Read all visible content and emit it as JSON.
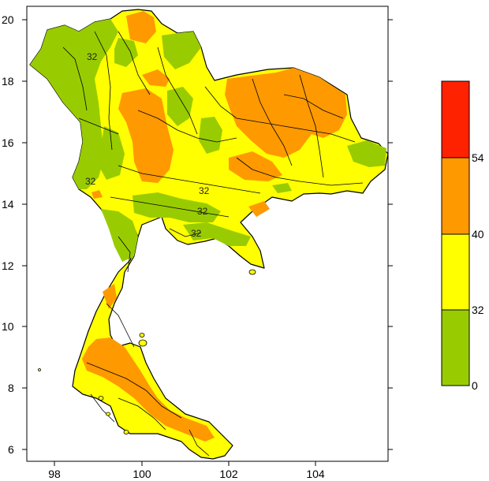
{
  "map": {
    "x_ticks": [
      "98",
      "100",
      "102",
      "104"
    ],
    "y_ticks": [
      "20",
      "18",
      "16",
      "14",
      "12",
      "10",
      "8",
      "6"
    ],
    "contour_labels": [
      "32",
      "32",
      "32",
      "32",
      "32"
    ]
  },
  "legend": {
    "classes": [
      {
        "range": "0-32",
        "color": "#99cc00"
      },
      {
        "range": "32-40",
        "color": "#ffff00"
      },
      {
        "range": "40-54",
        "color": "#ff9900"
      },
      {
        "range": ">54",
        "color": "#ff2200"
      }
    ],
    "labels": [
      "54",
      "40",
      "32",
      "0"
    ]
  },
  "colors": {
    "green": "#99cc00",
    "yellow": "#ffff00",
    "orange": "#ff9900",
    "red": "#ff2200",
    "border": "#000000"
  }
}
